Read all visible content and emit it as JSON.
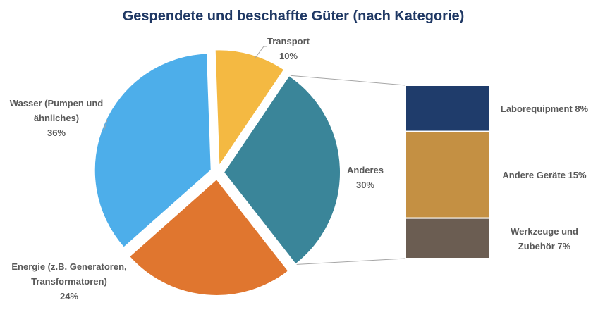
{
  "chart_data": {
    "type": "pie",
    "title": "Gespendete und beschaffte Güter (nach Kategorie)",
    "slices": [
      {
        "label_lines": [
          "Transport"
        ],
        "value_text": "10%",
        "value": 10,
        "color": "#F4B942"
      },
      {
        "label_lines": [
          "Anderes"
        ],
        "value_text": "30%",
        "value": 30,
        "color": "#3A8599"
      },
      {
        "label_lines": [
          "Energie (z.B. Generatoren,",
          "Transformatoren)"
        ],
        "value_text": "24%",
        "value": 24,
        "color": "#E0762F"
      },
      {
        "label_lines": [
          "Wasser (Pumpen und",
          "ähnliches)"
        ],
        "value_text": "36%",
        "value": 36,
        "color": "#4DAEEA"
      }
    ],
    "breakdown": {
      "of_slice": "Anderes",
      "segments": [
        {
          "label_lines": [
            "Laborequipment 8%"
          ],
          "value": 8,
          "color": "#1F3C6B"
        },
        {
          "label_lines": [
            "Andere Geräte  15%"
          ],
          "value": 15,
          "color": "#C49043"
        },
        {
          "label_lines": [
            "Werkzeuge und",
            "Zubehör  7%"
          ],
          "value": 7,
          "color": "#6B5D52"
        }
      ]
    },
    "legend": "none"
  }
}
